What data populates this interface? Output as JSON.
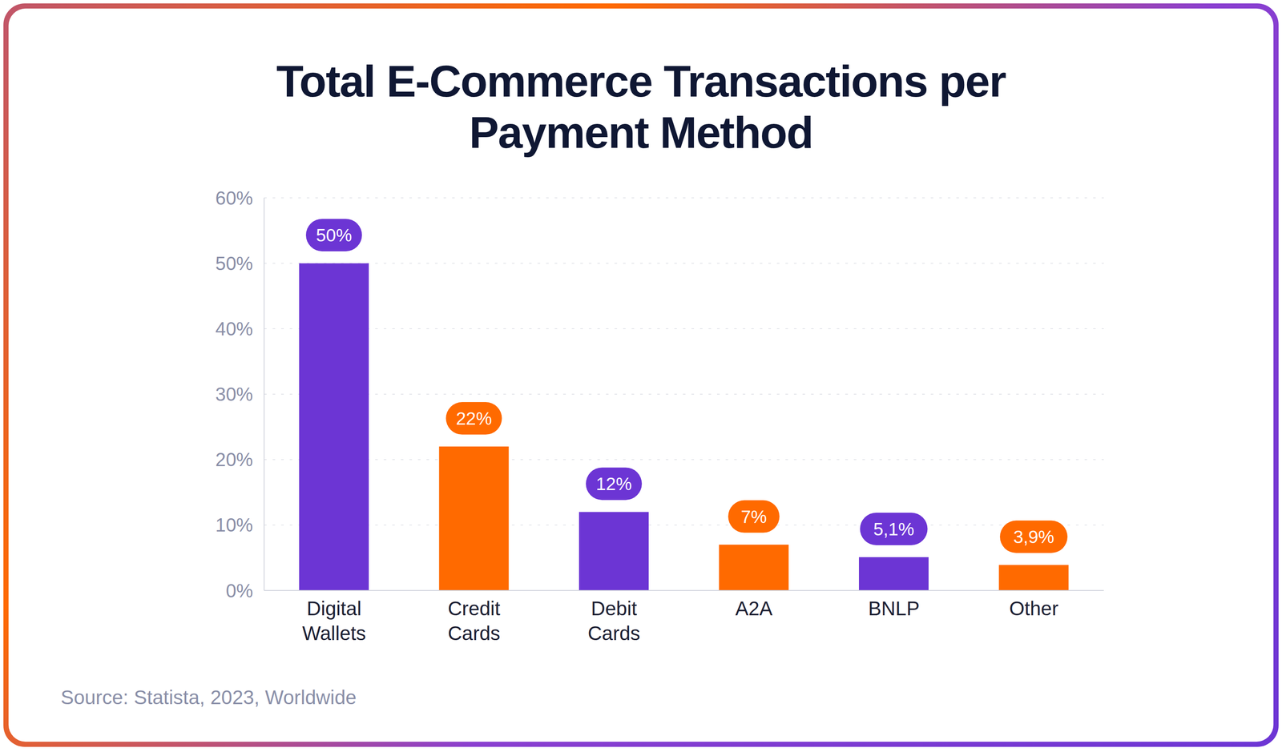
{
  "chart_data": {
    "type": "bar",
    "title": "Total E-Commerce Transactions per Payment Method",
    "source": "Source: Statista, 2023, Worldwide",
    "categories": [
      "Digital Wallets",
      "Credit Cards",
      "Debit Cards",
      "A2A",
      "BNLP",
      "Other"
    ],
    "values": [
      50,
      22,
      12,
      7,
      5.1,
      3.9
    ],
    "value_labels": [
      "50%",
      "22%",
      "12%",
      "7%",
      "5,1%",
      "3,9%"
    ],
    "colors": [
      "#6c35d4",
      "#ff6a00",
      "#6c35d4",
      "#ff6a00",
      "#6c35d4",
      "#ff6a00"
    ],
    "ylim": [
      0,
      60
    ],
    "yticks": [
      {
        "value": 0,
        "label": "0%"
      },
      {
        "value": 10,
        "label": "10%"
      },
      {
        "value": 20,
        "label": "20%"
      },
      {
        "value": 30,
        "label": "30%"
      },
      {
        "value": 40,
        "label": "40%"
      },
      {
        "value": 50,
        "label": "50%"
      },
      {
        "value": 60,
        "label": "60%"
      }
    ],
    "grid": true,
    "data_labels": true
  }
}
